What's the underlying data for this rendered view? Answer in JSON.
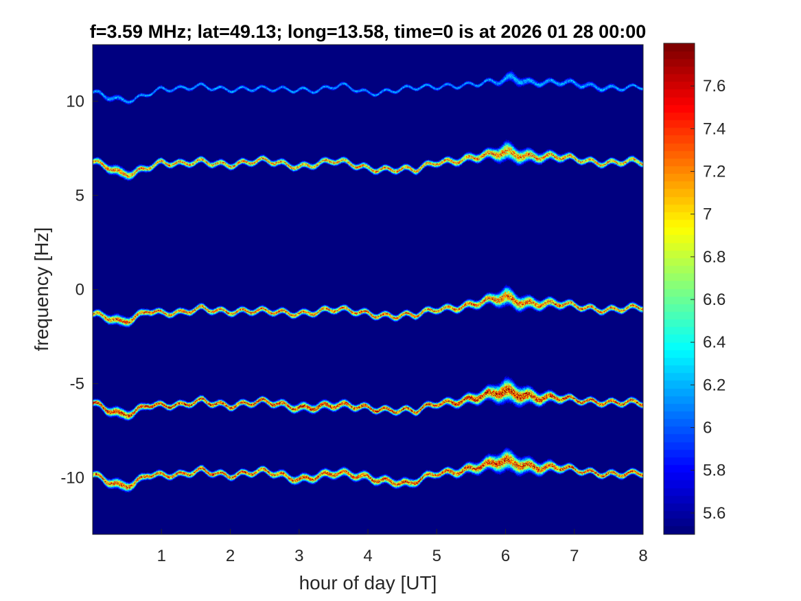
{
  "chart_data": {
    "type": "heatmap",
    "title": "f=3.59 MHz;  lat=49.13; long=13.58, time=0 is at 2026 01 28 00:00",
    "xlabel": "hour of day [UT]",
    "ylabel": "frequency [Hz]",
    "xlim": [
      0,
      8
    ],
    "ylim": [
      -13,
      13
    ],
    "x_ticks": [
      1,
      2,
      3,
      4,
      5,
      6,
      7,
      8
    ],
    "x_tick_labels": [
      "1",
      "2",
      "3",
      "4",
      "5",
      "6",
      "7",
      "8"
    ],
    "y_ticks": [
      10,
      5,
      0,
      -5,
      -10
    ],
    "y_tick_labels": [
      "10",
      "5",
      "0",
      "-5",
      "-10"
    ],
    "colormap": "jet",
    "background_color": "#00008f",
    "colorbar": {
      "range": [
        5.5,
        7.8
      ],
      "ticks": [
        7.6,
        7.4,
        7.2,
        7,
        6.8,
        6.6,
        6.4,
        6.2,
        6,
        5.8,
        5.6
      ],
      "tick_labels": [
        "7.6",
        "7.4",
        "7.2",
        "7",
        "6.8",
        "6.6",
        "6.4",
        "6.2",
        "6",
        "5.8",
        "5.6"
      ]
    },
    "grid": false,
    "traces": [
      {
        "name": "",
        "strength": 0.35,
        "x": [
          0.0,
          0.2,
          0.4,
          0.6,
          0.8,
          1.0,
          1.3,
          1.6,
          2.0,
          2.5,
          3.0,
          3.3,
          3.6,
          4.0,
          4.4,
          4.8,
          5.2,
          5.6,
          5.9,
          6.1,
          6.3,
          6.6,
          7.0,
          7.4,
          7.8,
          8.0
        ],
        "y": [
          10.5,
          10.2,
          10.0,
          10.1,
          10.5,
          10.7,
          10.6,
          10.8,
          10.7,
          10.6,
          10.7,
          10.6,
          10.8,
          10.5,
          10.6,
          10.7,
          10.9,
          10.9,
          11.0,
          11.3,
          11.1,
          11.0,
          10.9,
          10.8,
          10.7,
          10.7
        ],
        "width": [
          0.1,
          0.15,
          0.15,
          0.1,
          0.1,
          0.1,
          0.1,
          0.1,
          0.1,
          0.1,
          0.1,
          0.1,
          0.1,
          0.1,
          0.1,
          0.1,
          0.1,
          0.1,
          0.15,
          0.3,
          0.2,
          0.15,
          0.15,
          0.15,
          0.1,
          0.1
        ]
      },
      {
        "name": "",
        "strength": 0.85,
        "x": [
          0.0,
          0.2,
          0.4,
          0.6,
          0.8,
          1.0,
          1.3,
          1.6,
          2.0,
          2.5,
          3.0,
          3.5,
          4.0,
          4.4,
          4.7,
          5.0,
          5.5,
          5.8,
          6.0,
          6.2,
          6.5,
          6.8,
          7.0,
          7.4,
          7.8,
          8.0
        ],
        "y": [
          6.8,
          6.5,
          6.1,
          6.2,
          6.6,
          6.8,
          6.6,
          6.8,
          6.7,
          6.8,
          6.6,
          6.8,
          6.5,
          6.4,
          6.3,
          6.8,
          7.0,
          7.1,
          7.3,
          7.2,
          7.1,
          7.0,
          6.9,
          6.8,
          6.8,
          6.7
        ],
        "width": [
          0.15,
          0.2,
          0.25,
          0.2,
          0.15,
          0.15,
          0.15,
          0.15,
          0.15,
          0.15,
          0.15,
          0.15,
          0.15,
          0.15,
          0.15,
          0.15,
          0.2,
          0.25,
          0.45,
          0.35,
          0.25,
          0.2,
          0.15,
          0.15,
          0.15,
          0.15
        ]
      },
      {
        "name": "",
        "strength": 0.9,
        "x": [
          0.0,
          0.2,
          0.4,
          0.6,
          0.8,
          1.0,
          1.3,
          1.6,
          2.0,
          2.5,
          3.0,
          3.5,
          4.0,
          4.4,
          4.7,
          5.0,
          5.5,
          5.8,
          6.0,
          6.2,
          6.5,
          6.8,
          7.0,
          7.4,
          7.8,
          8.0
        ],
        "y": [
          -1.3,
          -1.5,
          -1.8,
          -1.5,
          -1.0,
          -1.2,
          -1.3,
          -1.0,
          -1.1,
          -1.2,
          -1.2,
          -1.1,
          -1.2,
          -1.4,
          -1.4,
          -1.0,
          -0.8,
          -0.6,
          -0.4,
          -0.6,
          -0.7,
          -0.8,
          -0.9,
          -1.0,
          -1.0,
          -1.0
        ],
        "width": [
          0.15,
          0.2,
          0.25,
          0.2,
          0.15,
          0.15,
          0.15,
          0.15,
          0.15,
          0.15,
          0.15,
          0.15,
          0.15,
          0.15,
          0.15,
          0.15,
          0.2,
          0.25,
          0.45,
          0.35,
          0.25,
          0.2,
          0.15,
          0.15,
          0.15,
          0.15
        ]
      },
      {
        "name": "",
        "strength": 1.0,
        "x": [
          0.0,
          0.2,
          0.4,
          0.6,
          0.8,
          1.0,
          1.3,
          1.6,
          2.0,
          2.5,
          3.0,
          3.5,
          4.0,
          4.4,
          4.7,
          5.0,
          5.5,
          5.8,
          6.0,
          6.2,
          6.5,
          6.8,
          7.0,
          7.4,
          7.8,
          8.0
        ],
        "y": [
          -6.0,
          -6.4,
          -6.7,
          -6.5,
          -6.0,
          -6.1,
          -6.2,
          -5.9,
          -6.1,
          -6.0,
          -6.2,
          -6.2,
          -6.2,
          -6.4,
          -6.5,
          -6.0,
          -5.8,
          -5.6,
          -5.4,
          -5.5,
          -5.7,
          -5.8,
          -5.9,
          -5.9,
          -6.0,
          -6.1
        ],
        "width": [
          0.15,
          0.2,
          0.25,
          0.2,
          0.15,
          0.15,
          0.15,
          0.15,
          0.15,
          0.15,
          0.2,
          0.2,
          0.15,
          0.15,
          0.15,
          0.15,
          0.25,
          0.35,
          0.55,
          0.45,
          0.3,
          0.2,
          0.15,
          0.15,
          0.15,
          0.15
        ]
      },
      {
        "name": "",
        "strength": 0.95,
        "x": [
          0.0,
          0.2,
          0.4,
          0.6,
          0.8,
          1.0,
          1.3,
          1.6,
          2.0,
          2.5,
          3.0,
          3.5,
          4.0,
          4.4,
          4.6,
          5.0,
          5.5,
          5.8,
          6.0,
          6.2,
          6.5,
          6.8,
          7.0,
          7.4,
          7.8,
          8.0
        ],
        "y": [
          -9.8,
          -10.2,
          -10.5,
          -10.3,
          -9.7,
          -9.8,
          -9.9,
          -9.6,
          -9.8,
          -9.7,
          -10.0,
          -9.8,
          -9.9,
          -10.2,
          -10.4,
          -9.7,
          -9.5,
          -9.3,
          -9.1,
          -9.2,
          -9.4,
          -9.5,
          -9.6,
          -9.7,
          -9.8,
          -9.8
        ],
        "width": [
          0.15,
          0.2,
          0.25,
          0.2,
          0.15,
          0.15,
          0.15,
          0.15,
          0.15,
          0.15,
          0.2,
          0.2,
          0.2,
          0.2,
          0.2,
          0.15,
          0.25,
          0.35,
          0.5,
          0.4,
          0.3,
          0.2,
          0.15,
          0.15,
          0.15,
          0.15
        ]
      }
    ]
  }
}
